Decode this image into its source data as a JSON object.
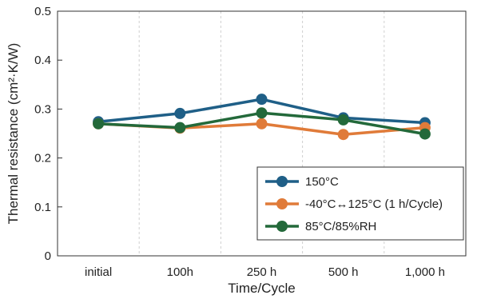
{
  "chart_data": {
    "type": "line",
    "categories": [
      "initial",
      "100h",
      "250 h",
      "500 h",
      "1,000 h"
    ],
    "series": [
      {
        "name": "150°C",
        "values": [
          0.274,
          0.291,
          0.32,
          0.282,
          0.272
        ],
        "color": "#1f5f87"
      },
      {
        "name": "-40°C↔125°C (1 h/Cycle)",
        "values": [
          0.27,
          0.261,
          0.27,
          0.248,
          0.262
        ],
        "color": "#e07b39"
      },
      {
        "name": "85°C/85%RH",
        "values": [
          0.27,
          0.262,
          0.292,
          0.278,
          0.249
        ],
        "color": "#23693a"
      }
    ],
    "title": "",
    "xlabel": "Time/Cycle",
    "ylabel": "Thermal resistance (cm²·K/W)",
    "ylim": [
      0,
      0.5
    ],
    "yticks": [
      "0",
      "0.1",
      "0.2",
      "0.3",
      "0.4",
      "0.5"
    ],
    "grid": "vertical dashed",
    "legend_position": "bottom-right"
  }
}
